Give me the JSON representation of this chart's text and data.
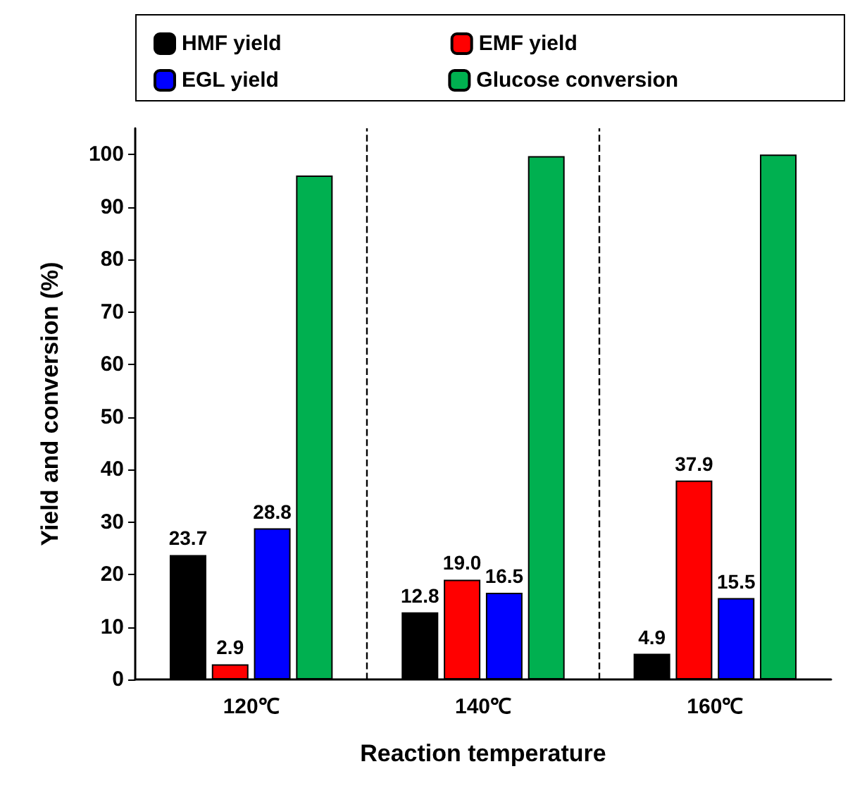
{
  "chart_data": {
    "type": "bar",
    "xlabel": "Reaction temperature",
    "ylabel": "Yield and conversion (%)",
    "categories": [
      "120℃",
      "140℃",
      "160℃"
    ],
    "series": [
      {
        "name": "HMF yield",
        "color": "#000000",
        "values": [
          23.7,
          12.8,
          4.9
        ],
        "value_labels": [
          "23.7",
          "12.8",
          "4.9"
        ]
      },
      {
        "name": "EMF yield",
        "color": "#ff0000",
        "values": [
          2.9,
          19.0,
          37.9
        ],
        "value_labels": [
          "2.9",
          "19.0",
          "37.9"
        ]
      },
      {
        "name": "EGL yield",
        "color": "#0000ff",
        "values": [
          28.8,
          16.5,
          15.5
        ],
        "value_labels": [
          "28.8",
          "16.5",
          "15.5"
        ]
      },
      {
        "name": "Glucose conversion",
        "color": "#00b050",
        "values": [
          96,
          99.7,
          100
        ],
        "value_labels": [
          null,
          null,
          null
        ]
      }
    ],
    "ylim": [
      0,
      105
    ],
    "yticks": [
      0,
      10,
      20,
      30,
      40,
      50,
      60,
      70,
      80,
      90,
      100
    ],
    "grid": false,
    "legend": "top"
  }
}
